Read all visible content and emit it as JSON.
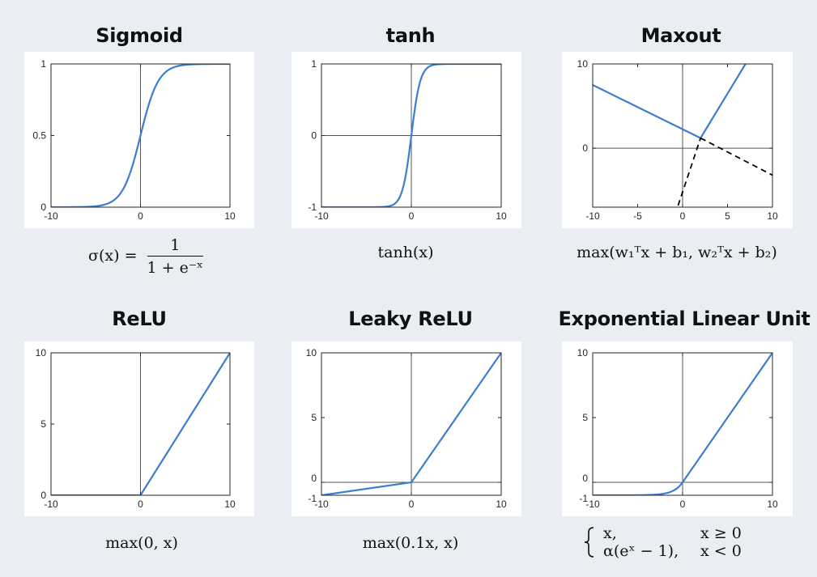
{
  "chart_data": [
    {
      "type": "line",
      "title": "Sigmoid",
      "formula": {
        "lhs": "σ(x) =",
        "num": "1",
        "den": "1 + e⁻ˣ"
      },
      "xlim": [
        -10,
        10
      ],
      "ylim": [
        0,
        1
      ],
      "xticks": [
        -10,
        0,
        10
      ],
      "yticks": [
        0,
        0.5,
        1
      ],
      "refline_x": 0,
      "refline_y": null,
      "func": "sigmoid",
      "series": [
        {
          "color": "#3a7fcf",
          "style": "solid"
        }
      ]
    },
    {
      "type": "line",
      "title": "tanh",
      "formula": {
        "text": "tanh(x)"
      },
      "xlim": [
        -10,
        10
      ],
      "ylim": [
        -1,
        1
      ],
      "xticks": [
        -10,
        0,
        10
      ],
      "yticks": [
        -1,
        0,
        1
      ],
      "refline_x": 0,
      "refline_y": 0,
      "func": "tanh",
      "series": [
        {
          "color": "#3a7fcf",
          "style": "solid"
        }
      ]
    },
    {
      "type": "line",
      "title": "Maxout",
      "formula": {
        "text": "max(w₁ᵀx + b₁, w₂ᵀx + b₂)"
      },
      "xlim": [
        -10,
        10
      ],
      "ylim": [
        -7,
        10
      ],
      "xticks": [
        -10,
        -5,
        0,
        5,
        10
      ],
      "yticks": [
        0,
        10
      ],
      "refline_x": 0,
      "refline_y": 0,
      "lines": [
        {
          "x": [
            -10,
            2
          ],
          "y": [
            7.5,
            1.2
          ],
          "color": "#3a7fcf",
          "style": "solid"
        },
        {
          "x": [
            2,
            7
          ],
          "y": [
            1.2,
            10
          ],
          "color": "#3a7fcf",
          "style": "solid"
        },
        {
          "x": [
            -0.5,
            2
          ],
          "y": [
            -6.8,
            1.2
          ],
          "color": "#000000",
          "style": "dashed"
        },
        {
          "x": [
            2,
            10
          ],
          "y": [
            1.2,
            -3.2
          ],
          "color": "#000000",
          "style": "dashed"
        }
      ]
    },
    {
      "type": "line",
      "title": "ReLU",
      "formula": {
        "text": "max(0, x)"
      },
      "xlim": [
        -10,
        10
      ],
      "ylim": [
        0,
        10
      ],
      "xticks": [
        -10,
        0,
        10
      ],
      "yticks": [
        0,
        5,
        10
      ],
      "refline_x": 0,
      "refline_y": null,
      "x": [
        -10,
        0,
        10
      ],
      "y": [
        0,
        0,
        10
      ],
      "series": [
        {
          "color": "#3a7fcf",
          "style": "solid"
        }
      ]
    },
    {
      "type": "line",
      "title": "Leaky ReLU",
      "formula": {
        "text": "max(0.1x, x)"
      },
      "xlim": [
        -10,
        10
      ],
      "ylim": [
        -1,
        10
      ],
      "xticks": [
        -10,
        0,
        10
      ],
      "yticks": [
        -1,
        0,
        5,
        10
      ],
      "refline_x": 0,
      "refline_y": 0,
      "x": [
        -10,
        0,
        10
      ],
      "y": [
        -1,
        0,
        10
      ],
      "series": [
        {
          "color": "#3a7fcf",
          "style": "solid"
        }
      ]
    },
    {
      "type": "line",
      "title": "Exponential Linear Unit",
      "formula": {
        "case1_expr": "x,",
        "case1_cond": "x ≥ 0",
        "case2_expr": "α(eˣ − 1),",
        "case2_cond": "x < 0"
      },
      "xlim": [
        -10,
        10
      ],
      "ylim": [
        -1,
        10
      ],
      "xticks": [
        -10,
        0,
        10
      ],
      "yticks": [
        -1,
        0,
        5,
        10
      ],
      "refline_x": 0,
      "refline_y": 0,
      "func": "elu",
      "series": [
        {
          "color": "#3a7fcf",
          "style": "solid"
        }
      ]
    }
  ]
}
